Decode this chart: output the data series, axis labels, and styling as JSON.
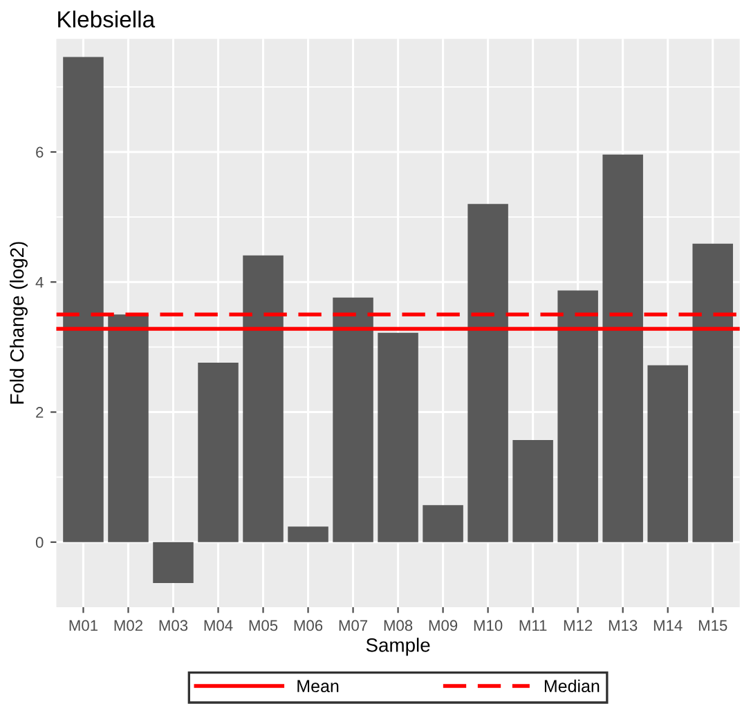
{
  "chart_data": {
    "type": "bar",
    "title": "Klebsiella",
    "xlabel": "Sample",
    "ylabel": "Fold Change (log2)",
    "categories": [
      "M01",
      "M02",
      "M03",
      "M04",
      "M05",
      "M06",
      "M07",
      "M08",
      "M09",
      "M10",
      "M11",
      "M12",
      "M13",
      "M14",
      "M15"
    ],
    "values": [
      7.46,
      3.5,
      -0.63,
      2.76,
      4.41,
      0.24,
      3.76,
      3.22,
      0.57,
      5.2,
      1.57,
      3.87,
      5.96,
      2.72,
      4.59
    ],
    "color": "#595959",
    "ylim": [
      -1.0,
      7.74
    ],
    "yticks": [
      0,
      2,
      4,
      6
    ],
    "grid": true,
    "legend": "bottom",
    "ref_lines": [
      {
        "axis": "y",
        "value": 3.28,
        "label": "Mean",
        "color": "#ff0000",
        "line_style": "solid"
      },
      {
        "axis": "y",
        "value": 3.5,
        "label": "Median",
        "color": "#ff0000",
        "line_style": "dashed"
      }
    ]
  }
}
